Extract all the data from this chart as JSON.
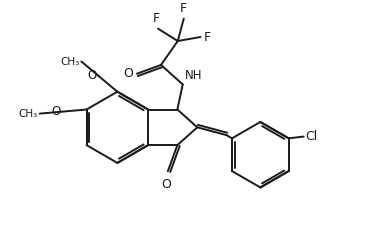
{
  "background_color": "#ffffff",
  "line_color": "#1a1a1a",
  "line_width": 1.4,
  "figsize": [
    3.7,
    2.33
  ],
  "dpi": 100,
  "xlim": [
    0,
    10
  ],
  "ylim": [
    0,
    6.3
  ]
}
